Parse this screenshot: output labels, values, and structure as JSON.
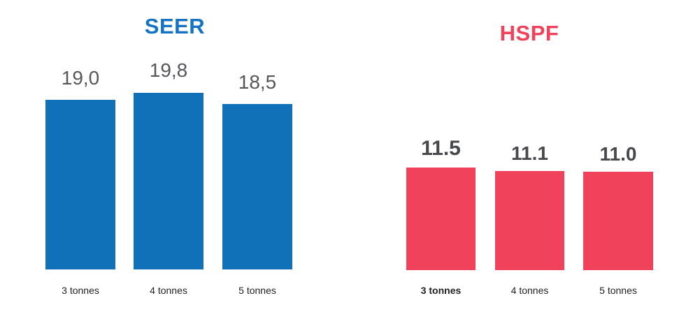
{
  "figure": {
    "background_color": "#ffffff"
  },
  "chart_data": [
    {
      "type": "bar",
      "title": "SEER",
      "categories": [
        "3 tonnes",
        "4 tonnes",
        "5 tonnes"
      ],
      "values": [
        19.0,
        19.8,
        18.5
      ],
      "value_labels": [
        "19,0",
        "19,8",
        "18,5"
      ],
      "decimal_separator": ",",
      "bar_color": "#1171B8",
      "title_color": "#1473C2",
      "value_label_color": "#56575B",
      "value_label_weight": "regular",
      "category_label_color": "#1f1f21",
      "emphasis_index": null,
      "xlabel": "",
      "ylabel": "",
      "ylim": [
        0,
        30
      ],
      "grid": false,
      "legend": false,
      "axis_lines": false
    },
    {
      "type": "bar",
      "title": "HSPF",
      "categories": [
        "3 tonnes",
        "4 tonnes",
        "5 tonnes"
      ],
      "values": [
        11.5,
        11.1,
        11.0
      ],
      "value_labels": [
        "11.5",
        "11.1",
        "11.0"
      ],
      "decimal_separator": ".",
      "bar_color": "#F0425A",
      "title_color": "#F0425A",
      "value_label_color": "#48494C",
      "value_label_weight": "bold",
      "category_label_color": "#1f1f21",
      "emphasis_index": 0,
      "xlabel": "",
      "ylabel": "",
      "ylim": [
        0,
        30
      ],
      "grid": false,
      "legend": false,
      "axis_lines": false
    }
  ]
}
